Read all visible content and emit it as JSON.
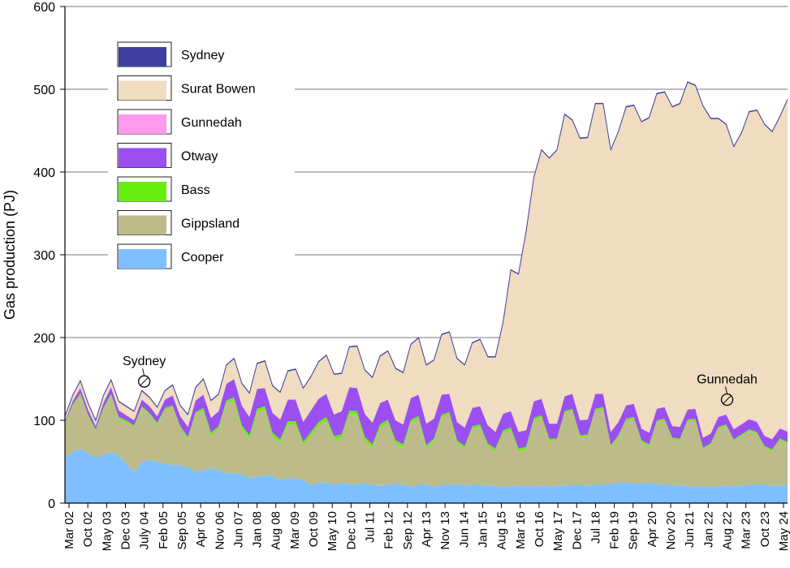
{
  "chart_data": {
    "type": "area",
    "stacked": true,
    "ylabel": "Gas production (PJ)",
    "ylim": [
      0,
      600
    ],
    "yticks": [
      0,
      100,
      200,
      300,
      400,
      500,
      600
    ],
    "grid": "horizontal",
    "legend_position": "top-left",
    "x_tick_labels": [
      "Mar 02",
      "Oct 02",
      "May 03",
      "Dec 03",
      "July 04",
      "Feb 05",
      "Sep 05",
      "Apr 06",
      "Nov 06",
      "Jun 07",
      "Jan 08",
      "Aug 08",
      "Mar 09",
      "Oct 09",
      "May 10",
      "Dec 10",
      "Jul 11",
      "Feb 12",
      "Sep 12",
      "Apr 13",
      "Nov 13",
      "Jun 14",
      "Jan 15",
      "Aug 15",
      "Mar 16",
      "Oct 16",
      "May 17",
      "Dec 17",
      "Jul 18",
      "Feb 19",
      "Sep 19",
      "Apr 20",
      "Nov 20",
      "Jun 21",
      "Jan 22",
      "Aug 22",
      "Mar 23",
      "Oct 23",
      "May 24"
    ],
    "series": [
      {
        "name": "Cooper",
        "color": "#7fbfff",
        "values": [
          55,
          62,
          66,
          60,
          55,
          58,
          62,
          57,
          48,
          37,
          50,
          52,
          50,
          48,
          46,
          46,
          43,
          38,
          40,
          42,
          40,
          36,
          36,
          35,
          30,
          32,
          33,
          33,
          28,
          30,
          30,
          28,
          22,
          24,
          25,
          22,
          24,
          23,
          22,
          24,
          22,
          21,
          22,
          24,
          22,
          20,
          22,
          22,
          20,
          22,
          22,
          23,
          21,
          22,
          22,
          21,
          21,
          20,
          20,
          21,
          20,
          20,
          21,
          20,
          21,
          21,
          22,
          22,
          21,
          22,
          22,
          23,
          25,
          25,
          24,
          24,
          24,
          23,
          22,
          22,
          21,
          21,
          20,
          20,
          20,
          20,
          21,
          20,
          21,
          22,
          22,
          22,
          21,
          21,
          22
        ]
      },
      {
        "name": "Gippsland",
        "color": "#bdbb8a",
        "values": [
          40,
          55,
          65,
          45,
          32,
          55,
          68,
          45,
          50,
          55,
          65,
          55,
          45,
          65,
          70,
          45,
          35,
          70,
          72,
          40,
          50,
          85,
          88,
          55,
          48,
          78,
          80,
          48,
          45,
          65,
          65,
          42,
          60,
          70,
          75,
          55,
          55,
          85,
          85,
          52,
          45,
          70,
          75,
          48,
          45,
          78,
          80,
          45,
          55,
          82,
          85,
          50,
          45,
          68,
          70,
          48,
          42,
          65,
          68,
          42,
          45,
          80,
          82,
          55,
          55,
          88,
          90,
          58,
          60,
          90,
          92,
          45,
          55,
          75,
          78,
          50,
          45,
          75,
          78,
          55,
          55,
          78,
          80,
          45,
          50,
          70,
          72,
          55,
          60,
          65,
          62,
          45,
          42,
          55,
          50
        ]
      },
      {
        "name": "Bass",
        "color": "#66ee11",
        "values": [
          2,
          2,
          2,
          2,
          2,
          2,
          2,
          2,
          2,
          2,
          2,
          2,
          2,
          2,
          2,
          2,
          2,
          2,
          3,
          3,
          3,
          3,
          4,
          4,
          4,
          4,
          4,
          4,
          4,
          4,
          4,
          4,
          4,
          4,
          4,
          4,
          4,
          4,
          4,
          4,
          4,
          4,
          4,
          4,
          4,
          3,
          3,
          3,
          3,
          3,
          3,
          3,
          3,
          3,
          3,
          3,
          3,
          3,
          3,
          3,
          3,
          3,
          3,
          3,
          2,
          2,
          2,
          2,
          2,
          2,
          2,
          2,
          2,
          2,
          2,
          2,
          2,
          2,
          2,
          2,
          2,
          2,
          2,
          2,
          2,
          2,
          2,
          2,
          2,
          2,
          2,
          2,
          2,
          2,
          2
        ]
      },
      {
        "name": "Otway",
        "color": "#9b4ff0",
        "values": [
          2,
          4,
          6,
          6,
          4,
          6,
          8,
          8,
          6,
          6,
          8,
          8,
          8,
          10,
          12,
          12,
          12,
          14,
          16,
          18,
          18,
          20,
          22,
          24,
          22,
          24,
          22,
          24,
          24,
          26,
          26,
          24,
          26,
          28,
          28,
          26,
          28,
          28,
          28,
          28,
          26,
          26,
          24,
          24,
          24,
          26,
          26,
          26,
          24,
          24,
          22,
          22,
          22,
          22,
          22,
          22,
          20,
          20,
          20,
          20,
          20,
          20,
          20,
          18,
          18,
          18,
          18,
          18,
          18,
          18,
          16,
          16,
          16,
          16,
          16,
          14,
          14,
          14,
          14,
          14,
          14,
          12,
          12,
          12,
          12,
          12,
          12,
          12,
          12,
          12,
          12,
          12,
          12,
          12,
          12
        ]
      },
      {
        "name": "Gunnedah",
        "color": "#ff99ee",
        "values": [
          0,
          0,
          0,
          0,
          0,
          0,
          0,
          0,
          0,
          0,
          0,
          0,
          0,
          0,
          0,
          0,
          0,
          0,
          0,
          0,
          0,
          0,
          0,
          0,
          0,
          0,
          0,
          0,
          0,
          0,
          0,
          0,
          0,
          0,
          0,
          0,
          0,
          0,
          0,
          0,
          0,
          0,
          0,
          0,
          0,
          0,
          0,
          0,
          0,
          0,
          0,
          0,
          0,
          0,
          0,
          0,
          0,
          0,
          0,
          0,
          0,
          0,
          0,
          0,
          0,
          0,
          0,
          0,
          0,
          0,
          0,
          0,
          0,
          0,
          0,
          0,
          0,
          0,
          0,
          0,
          0,
          0,
          0,
          0,
          0,
          0,
          0,
          1,
          1,
          1,
          1,
          1,
          1,
          1,
          1
        ]
      },
      {
        "name": "Surat Bowen",
        "color": "#f0dcc0",
        "values": [
          5,
          6,
          8,
          7,
          6,
          8,
          8,
          10,
          10,
          10,
          10,
          10,
          10,
          10,
          12,
          12,
          14,
          15,
          18,
          20,
          20,
          22,
          24,
          26,
          28,
          30,
          32,
          32,
          32,
          34,
          36,
          40,
          40,
          44,
          46,
          48,
          45,
          48,
          50,
          52,
          54,
          56,
          58,
          62,
          62,
          64,
          68,
          70,
          70,
          72,
          74,
          76,
          75,
          78,
          80,
          82,
          90,
          110,
          170,
          190,
          240,
          270,
          300,
          320,
          330,
          340,
          330,
          340,
          340,
          350,
          350,
          340,
          350,
          360,
          360,
          370,
          380,
          380,
          380,
          385,
          390,
          395,
          390,
          400,
          380,
          360,
          350,
          340,
          350,
          370,
          375,
          375,
          370,
          375,
          400
        ]
      },
      {
        "name": "Sydney",
        "color": "#3f3f9f",
        "values": [
          1,
          1,
          1,
          1,
          1,
          1,
          1,
          1,
          1,
          1,
          1,
          1,
          1,
          1,
          1,
          1,
          1,
          1,
          1,
          1,
          1,
          1,
          1,
          1,
          1,
          1,
          1,
          1,
          1,
          1,
          1,
          1,
          1,
          1,
          1,
          1,
          1,
          1,
          1,
          1,
          1,
          1,
          1,
          1,
          1,
          1,
          1,
          1,
          1,
          1,
          1,
          1,
          1,
          1,
          1,
          1,
          1,
          1,
          1,
          1,
          1,
          1,
          1,
          1,
          1,
          1,
          1,
          1,
          1,
          1,
          1,
          1,
          1,
          1,
          1,
          1,
          1,
          1,
          1,
          1,
          1,
          1,
          1,
          1,
          1,
          1,
          1,
          1,
          1,
          1,
          1,
          1,
          1,
          1,
          1
        ]
      }
    ],
    "legend_order": [
      "Sydney",
      "Surat Bowen",
      "Gunnedah",
      "Otway",
      "Bass",
      "Gippsland",
      "Cooper"
    ],
    "annotations": [
      {
        "text": "Sydney",
        "x_tick": "July 04",
        "y": 147
      },
      {
        "text": "Gunnedah",
        "x_tick": "Aug 22",
        "y": 125
      }
    ]
  }
}
